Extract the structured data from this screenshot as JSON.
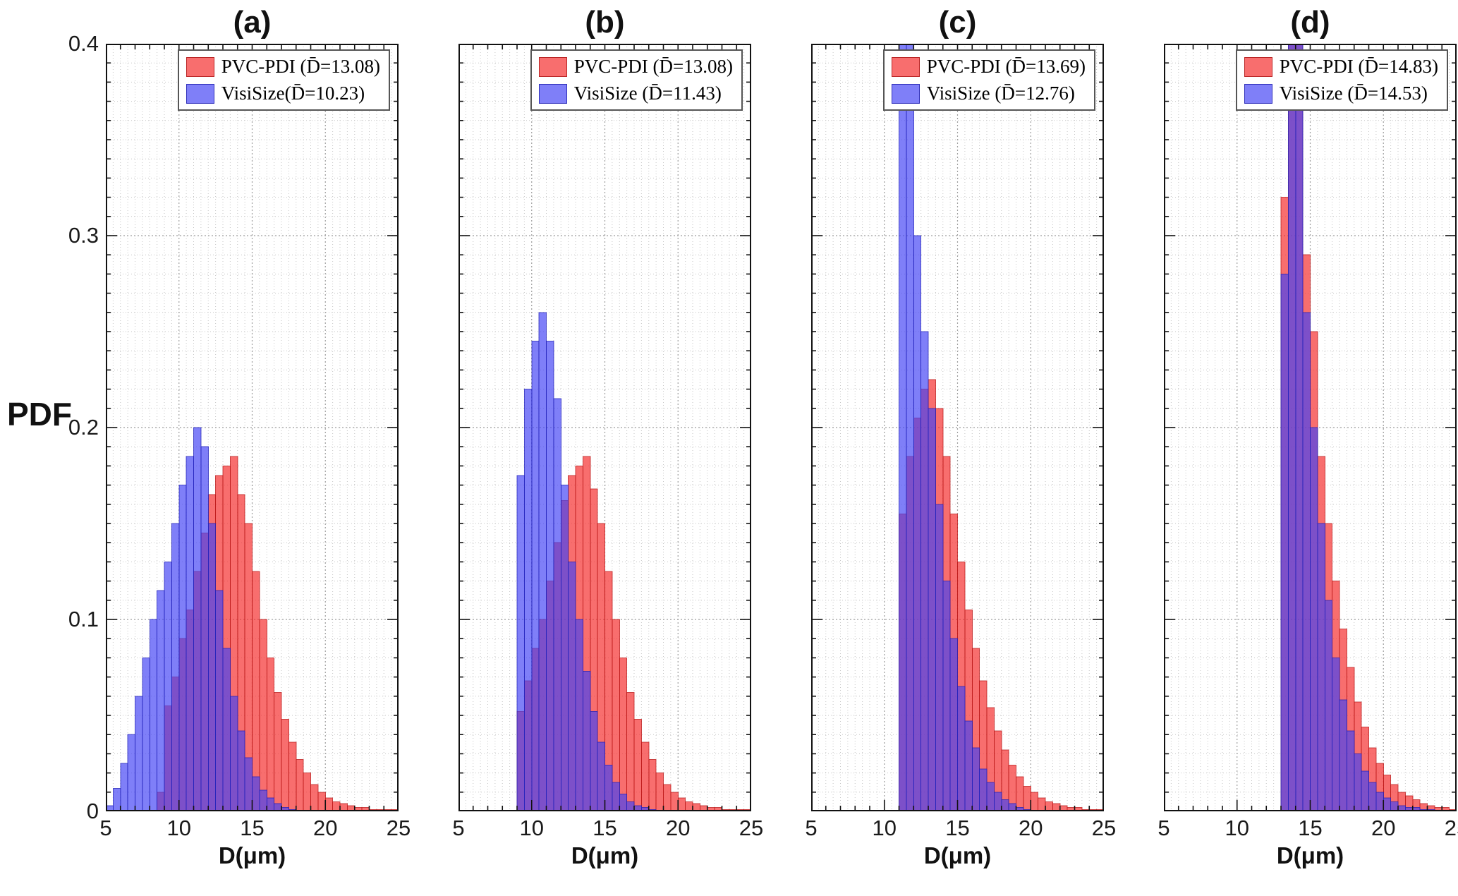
{
  "ylabel": "PDF",
  "axis": {
    "x_ticks": [
      5,
      10,
      15,
      20,
      25
    ],
    "y_ticks": [
      0,
      0.1,
      0.2,
      0.3,
      0.4
    ],
    "y_tick_labels": [
      "0",
      "0.1",
      "0.2",
      "0.3",
      "0.4"
    ],
    "x_minor_tick": 1,
    "y_minor_tick": 0.01,
    "x_minor_grid": 0.5,
    "y_minor_grid": 0.01,
    "grid": "minor-dotted",
    "legend_position": "top-right-inside"
  },
  "colors": {
    "red": {
      "fill": "#f42929",
      "edge": "#b81818"
    },
    "blue": {
      "fill": "#4343f4",
      "edge": "#2222b8"
    },
    "fill_opacity": 0.68
  },
  "chart_data": [
    {
      "type": "bar",
      "subtype": "overlaid-histogram",
      "title": "(a)",
      "xlabel": "D(μm)",
      "ylabel": "PDF",
      "xlim": [
        5,
        25
      ],
      "ylim": [
        0,
        0.4
      ],
      "bin_start": 5,
      "bin_width": 0.5,
      "series": [
        {
          "name": "PVC-PDI (D̄=13.08)",
          "color": "red",
          "values": [
            0,
            0,
            0,
            0,
            0,
            0,
            0,
            0.01,
            0.055,
            0.07,
            0.09,
            0.105,
            0.125,
            0.145,
            0.165,
            0.175,
            0.18,
            0.185,
            0.165,
            0.15,
            0.125,
            0.1,
            0.08,
            0.062,
            0.048,
            0.036,
            0.027,
            0.02,
            0.014,
            0.01,
            0.007,
            0.005,
            0.004,
            0.003,
            0.002,
            0.002,
            0.001,
            0.001,
            0.001,
            0.001
          ]
        },
        {
          "name": "VisiSize(D̄=10.23)",
          "color": "blue",
          "values": [
            0.003,
            0.012,
            0.025,
            0.04,
            0.06,
            0.08,
            0.1,
            0.115,
            0.13,
            0.15,
            0.17,
            0.185,
            0.2,
            0.19,
            0.15,
            0.115,
            0.085,
            0.06,
            0.042,
            0.028,
            0.018,
            0.011,
            0.007,
            0.004,
            0.002,
            0.001,
            0,
            0,
            0,
            0,
            0,
            0,
            0,
            0,
            0,
            0,
            0,
            0,
            0,
            0
          ]
        }
      ]
    },
    {
      "type": "bar",
      "subtype": "overlaid-histogram",
      "title": "(b)",
      "xlabel": "D(μm)",
      "ylabel": "PDF",
      "xlim": [
        5,
        25
      ],
      "ylim": [
        0,
        0.4
      ],
      "bin_start": 5,
      "bin_width": 0.5,
      "series": [
        {
          "name": "PVC-PDI (D̄=13.08)",
          "color": "red",
          "values": [
            0,
            0,
            0,
            0,
            0,
            0,
            0,
            0,
            0.052,
            0.068,
            0.085,
            0.1,
            0.12,
            0.14,
            0.162,
            0.175,
            0.18,
            0.185,
            0.168,
            0.15,
            0.125,
            0.1,
            0.08,
            0.062,
            0.048,
            0.036,
            0.027,
            0.02,
            0.014,
            0.01,
            0.007,
            0.005,
            0.004,
            0.003,
            0.002,
            0.002,
            0.001,
            0.001,
            0.001,
            0.001
          ]
        },
        {
          "name": "VisiSize (D̄=11.43)",
          "color": "blue",
          "values": [
            0,
            0,
            0,
            0,
            0,
            0,
            0,
            0,
            0.175,
            0.22,
            0.245,
            0.26,
            0.245,
            0.215,
            0.17,
            0.13,
            0.1,
            0.073,
            0.052,
            0.036,
            0.024,
            0.015,
            0.009,
            0.005,
            0.003,
            0.002,
            0.001,
            0,
            0,
            0,
            0,
            0,
            0,
            0,
            0,
            0,
            0,
            0,
            0,
            0
          ]
        }
      ]
    },
    {
      "type": "bar",
      "subtype": "overlaid-histogram",
      "title": "(c)",
      "xlabel": "D(μm)",
      "ylabel": "PDF",
      "xlim": [
        5,
        25
      ],
      "ylim": [
        0,
        0.4
      ],
      "bin_start": 5,
      "bin_width": 0.5,
      "series": [
        {
          "name": "PVC-PDI (D̄=13.69)",
          "color": "red",
          "values": [
            0,
            0,
            0,
            0,
            0,
            0,
            0,
            0,
            0,
            0,
            0,
            0,
            0.155,
            0.185,
            0.205,
            0.22,
            0.225,
            0.21,
            0.185,
            0.155,
            0.13,
            0.105,
            0.085,
            0.068,
            0.054,
            0.042,
            0.032,
            0.024,
            0.018,
            0.013,
            0.01,
            0.007,
            0.005,
            0.004,
            0.003,
            0.002,
            0.002,
            0.001,
            0.001,
            0.001
          ]
        },
        {
          "name": "VisiSize (D̄=12.76)",
          "color": "blue",
          "values": [
            0,
            0,
            0,
            0,
            0,
            0,
            0,
            0,
            0,
            0,
            0,
            0,
            0.43,
            0.46,
            0.3,
            0.25,
            0.21,
            0.16,
            0.12,
            0.09,
            0.065,
            0.047,
            0.033,
            0.022,
            0.015,
            0.01,
            0.006,
            0.004,
            0.002,
            0.001,
            0,
            0,
            0,
            0,
            0,
            0,
            0,
            0,
            0,
            0
          ]
        }
      ]
    },
    {
      "type": "bar",
      "subtype": "overlaid-histogram",
      "title": "(d)",
      "xlabel": "D(μm)",
      "ylabel": "PDF",
      "xlim": [
        5,
        25
      ],
      "ylim": [
        0,
        0.4
      ],
      "bin_start": 5,
      "bin_width": 0.5,
      "series": [
        {
          "name": "PVC-PDI (D̄=14.83)",
          "color": "red",
          "values": [
            0,
            0,
            0,
            0,
            0,
            0,
            0,
            0,
            0,
            0,
            0,
            0,
            0,
            0,
            0,
            0,
            0.32,
            0.45,
            0.44,
            0.29,
            0.25,
            0.185,
            0.15,
            0.12,
            0.095,
            0.075,
            0.057,
            0.044,
            0.033,
            0.025,
            0.019,
            0.014,
            0.01,
            0.008,
            0.006,
            0.004,
            0.003,
            0.002,
            0.002,
            0.001
          ]
        },
        {
          "name": "VisiSize (D̄=14.53)",
          "color": "blue",
          "values": [
            0,
            0,
            0,
            0,
            0,
            0,
            0,
            0,
            0,
            0,
            0,
            0,
            0,
            0,
            0,
            0,
            0.28,
            0.5,
            0.46,
            0.26,
            0.2,
            0.15,
            0.11,
            0.08,
            0.058,
            0.042,
            0.03,
            0.021,
            0.015,
            0.01,
            0.007,
            0.005,
            0.003,
            0.002,
            0.002,
            0.001,
            0.001,
            0,
            0,
            0
          ]
        }
      ]
    }
  ]
}
